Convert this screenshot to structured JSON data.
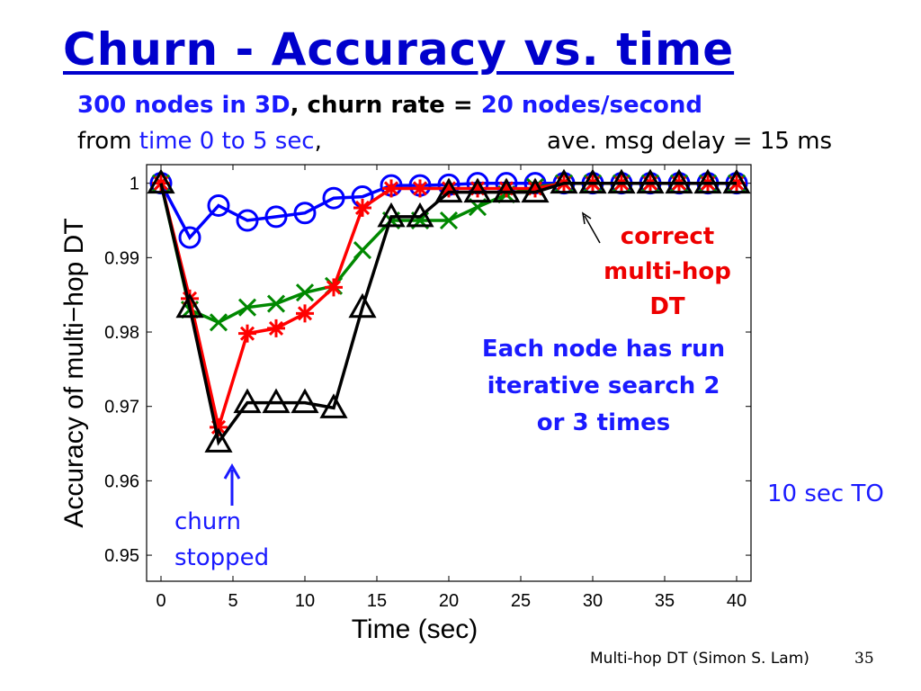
{
  "slide": {
    "title": "Churn - Accuracy vs. time",
    "subtitle_line1": {
      "part1": "300 nodes in 3D",
      "part2": ", churn rate = ",
      "part3": "20 nodes/second"
    },
    "subtitle_line2": {
      "from": "from ",
      "range": "time 0 to 5 sec",
      "comma": ",",
      "delay": "ave. msg delay = 15 ms"
    },
    "annotation_correct": [
      "correct",
      "multi-hop",
      "DT"
    ],
    "annotation_each": [
      "Each node has run",
      "iterative search 2",
      "or 3 times"
    ],
    "annotation_timeout": "10 sec TO",
    "annotation_churn": [
      "churn",
      "stopped"
    ],
    "footer": "Multi-hop DT (Simon S. Lam)",
    "page_number": "35"
  },
  "chart_data": {
    "type": "line",
    "title": "",
    "xlabel": "Time (sec)",
    "ylabel": "Accuracy of multi−hop DT",
    "xlim": [
      -1,
      41
    ],
    "ylim": [
      0.9465,
      1.0025
    ],
    "xticks": [
      0,
      5,
      10,
      15,
      20,
      25,
      30,
      35,
      40
    ],
    "yticks": [
      0.95,
      0.96,
      0.97,
      0.98,
      0.99,
      1
    ],
    "ytick_labels": [
      "0.95",
      "0.96",
      "0.97",
      "0.98",
      "0.99",
      "1"
    ],
    "grid": false,
    "x": [
      0,
      2,
      4,
      6,
      8,
      10,
      12,
      14,
      16,
      18,
      20,
      22,
      24,
      26,
      28,
      30,
      32,
      34,
      36,
      38,
      40
    ],
    "series": [
      {
        "color": "#0000ff",
        "marker": "circle",
        "values": [
          1.0,
          0.9927,
          0.997,
          0.995,
          0.9955,
          0.996,
          0.998,
          0.9982,
          0.9997,
          0.9997,
          0.9998,
          1.0,
          1.0,
          1.0,
          1.0,
          1.0,
          1.0,
          1.0,
          1.0,
          1.0,
          1.0
        ]
      },
      {
        "color": "#008800",
        "marker": "x",
        "values": [
          1.0,
          0.983,
          0.9813,
          0.9833,
          0.9838,
          0.9853,
          0.9862,
          0.991,
          0.995,
          0.995,
          0.995,
          0.9968,
          0.9985,
          0.9995,
          1.0,
          1.0,
          1.0,
          1.0,
          1.0,
          1.0,
          1.0
        ]
      },
      {
        "color": "#ff0000",
        "marker": "star",
        "values": [
          1.0,
          0.9845,
          0.9672,
          0.9798,
          0.9805,
          0.9825,
          0.986,
          0.9967,
          0.9993,
          0.9993,
          0.9993,
          0.9993,
          0.9993,
          0.9993,
          1.0,
          1.0,
          1.0,
          1.0,
          1.0,
          1.0,
          1.0
        ]
      },
      {
        "color": "#000000",
        "marker": "triangle",
        "values": [
          1.0,
          0.9833,
          0.9652,
          0.9705,
          0.9705,
          0.9705,
          0.9698,
          0.9833,
          0.9955,
          0.9955,
          0.9988,
          0.9988,
          0.9988,
          0.9988,
          1.0,
          1.0,
          1.0,
          1.0,
          1.0,
          1.0,
          1.0
        ]
      }
    ]
  }
}
